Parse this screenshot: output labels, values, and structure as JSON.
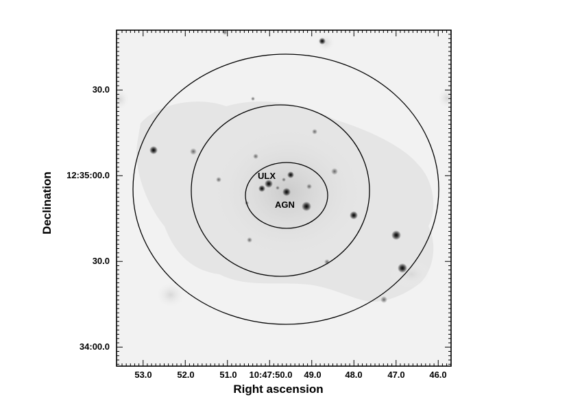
{
  "figure": {
    "x_axis_title": "Right ascension",
    "y_axis_title": "Declination",
    "x_ticks": [
      "53.0",
      "52.0",
      "51.0",
      "10:47:50.0",
      "49.0",
      "48.0",
      "47.0",
      "46.0"
    ],
    "y_ticks": [
      "30.0",
      "12:35:00.0",
      "30.0",
      "34:00.0"
    ],
    "annotations": [
      "ULX",
      "AGN"
    ],
    "colors": {
      "background": "#f2f2f2",
      "diffuse_emission": "#e3e3e3",
      "contours": "#000000"
    },
    "colormap": "grayscale (inverted)",
    "contour_levels": 3
  }
}
